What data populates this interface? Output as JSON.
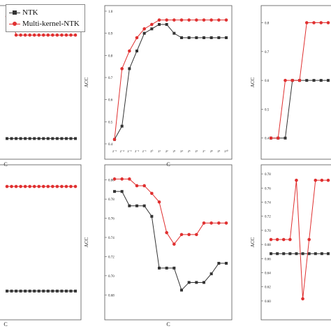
{
  "legend": [
    {
      "name": "NTK",
      "color": "#333333",
      "marker": "square"
    },
    {
      "name": "Multi-kernel-NTK",
      "color": "#e03030",
      "marker": "circle"
    }
  ],
  "chart_data": [
    {
      "type": "line",
      "panel": "top-left",
      "xlabel": "C",
      "ylabel": "",
      "x": [
        0,
        1,
        2,
        3,
        4,
        5,
        6,
        7,
        8,
        9,
        10,
        11,
        12,
        13,
        14,
        15
      ],
      "ylim": [
        0,
        1
      ],
      "series": [
        {
          "name": "NTK",
          "color": "#333333",
          "values": [
            0.04,
            0.04,
            0.04,
            0.04,
            0.04,
            0.04,
            0.04,
            0.04,
            0.04,
            0.04,
            0.04,
            0.04,
            0.04,
            0.04,
            0.04,
            0.04
          ]
        },
        {
          "name": "Multi-kernel-NTK",
          "color": "#e03030",
          "values": [
            0.96,
            0.96,
            0.82,
            0.82,
            0.82,
            0.82,
            0.82,
            0.82,
            0.82,
            0.82,
            0.82,
            0.82,
            0.82,
            0.82,
            0.82,
            0.82
          ]
        }
      ]
    },
    {
      "type": "line",
      "panel": "top-middle",
      "xlabel": "C",
      "ylabel": "ACC",
      "yticks": [
        "0.4",
        "0.5",
        "0.6",
        "0.7",
        "0.8",
        "0.9",
        "1.0"
      ],
      "xticks": [
        "2⁻⁵",
        "2⁻⁴",
        "2⁻³",
        "2⁻²",
        "2⁻¹",
        "2⁰",
        "2¹",
        "2²",
        "2³",
        "2⁴",
        "2⁵",
        "2⁶",
        "2⁷",
        "2⁸",
        "2⁹",
        "2¹⁰"
      ],
      "ylim": [
        0.4,
        1.0
      ],
      "series": [
        {
          "name": "NTK",
          "color": "#333333",
          "values": [
            0.42,
            0.48,
            0.74,
            0.82,
            0.9,
            0.92,
            0.94,
            0.94,
            0.9,
            0.88,
            0.88,
            0.88,
            0.88,
            0.88,
            0.88,
            0.88
          ]
        },
        {
          "name": "Multi-kernel-NTK",
          "color": "#e03030",
          "values": [
            0.42,
            0.74,
            0.82,
            0.88,
            0.92,
            0.94,
            0.96,
            0.96,
            0.96,
            0.96,
            0.96,
            0.96,
            0.96,
            0.96,
            0.96,
            0.96
          ]
        }
      ]
    },
    {
      "type": "line",
      "panel": "top-right",
      "xlabel": "",
      "ylabel": "ACC",
      "yticks": [
        "0.4",
        "0.5",
        "0.6",
        "0.7",
        "0.8"
      ],
      "ylim": [
        0.38,
        0.84
      ],
      "series": [
        {
          "name": "NTK",
          "color": "#333333",
          "values": [
            0.4,
            0.4,
            0.4,
            0.6,
            0.6,
            0.6,
            0.6,
            0.6,
            0.6
          ]
        },
        {
          "name": "Multi-kernel-NTK",
          "color": "#e03030",
          "values": [
            0.4,
            0.4,
            0.6,
            0.6,
            0.6,
            0.8,
            0.8,
            0.8,
            0.8
          ]
        }
      ]
    },
    {
      "type": "line",
      "panel": "bottom-left",
      "xlabel": "C",
      "ylabel": "",
      "ylim": [
        0,
        1
      ],
      "series": [
        {
          "name": "NTK",
          "color": "#333333",
          "values": [
            0.1,
            0.1,
            0.1,
            0.1,
            0.1,
            0.1,
            0.1,
            0.1,
            0.1,
            0.1,
            0.1,
            0.1,
            0.1,
            0.1,
            0.1,
            0.1
          ]
        },
        {
          "name": "Multi-kernel-NTK",
          "color": "#e03030",
          "values": [
            0.88,
            0.88,
            0.88,
            0.88,
            0.88,
            0.88,
            0.88,
            0.88,
            0.88,
            0.88,
            0.88,
            0.88,
            0.88,
            0.88,
            0.88,
            0.88
          ]
        }
      ]
    },
    {
      "type": "line",
      "panel": "bottom-middle",
      "xlabel": "C",
      "ylabel": "ACC",
      "yticks": [
        "0.68",
        "0.70",
        "0.72",
        "0.74",
        "0.76",
        "0.78",
        "0.80"
      ],
      "ylim": [
        0.67,
        0.81
      ],
      "series": [
        {
          "name": "NTK",
          "color": "#333333",
          "values": [
            0.788,
            0.788,
            0.773,
            0.773,
            0.773,
            0.762,
            0.708,
            0.708,
            0.708,
            0.685,
            0.693,
            0.693,
            0.693,
            0.702,
            0.713,
            0.713
          ]
        },
        {
          "name": "Multi-kernel-NTK",
          "color": "#e03030",
          "values": [
            0.801,
            0.801,
            0.801,
            0.794,
            0.794,
            0.786,
            0.777,
            0.745,
            0.733,
            0.743,
            0.743,
            0.743,
            0.755,
            0.755,
            0.755,
            0.755
          ]
        }
      ]
    },
    {
      "type": "line",
      "panel": "bottom-right",
      "xlabel": "",
      "ylabel": "ACC",
      "yticks": [
        "0.60",
        "0.62",
        "0.64",
        "0.66",
        "0.68",
        "0.70",
        "0.72",
        "0.74",
        "0.76",
        "0.78"
      ],
      "ylim": [
        0.595,
        0.785
      ],
      "series": [
        {
          "name": "NTK",
          "color": "#333333",
          "values": [
            0.667,
            0.667,
            0.667,
            0.667,
            0.667,
            0.667,
            0.667,
            0.667,
            0.667,
            0.667
          ]
        },
        {
          "name": "Multi-kernel-NTK",
          "color": "#e03030",
          "values": [
            0.687,
            0.687,
            0.687,
            0.687,
            0.771,
            0.603,
            0.687,
            0.771,
            0.771,
            0.771
          ]
        }
      ]
    }
  ]
}
